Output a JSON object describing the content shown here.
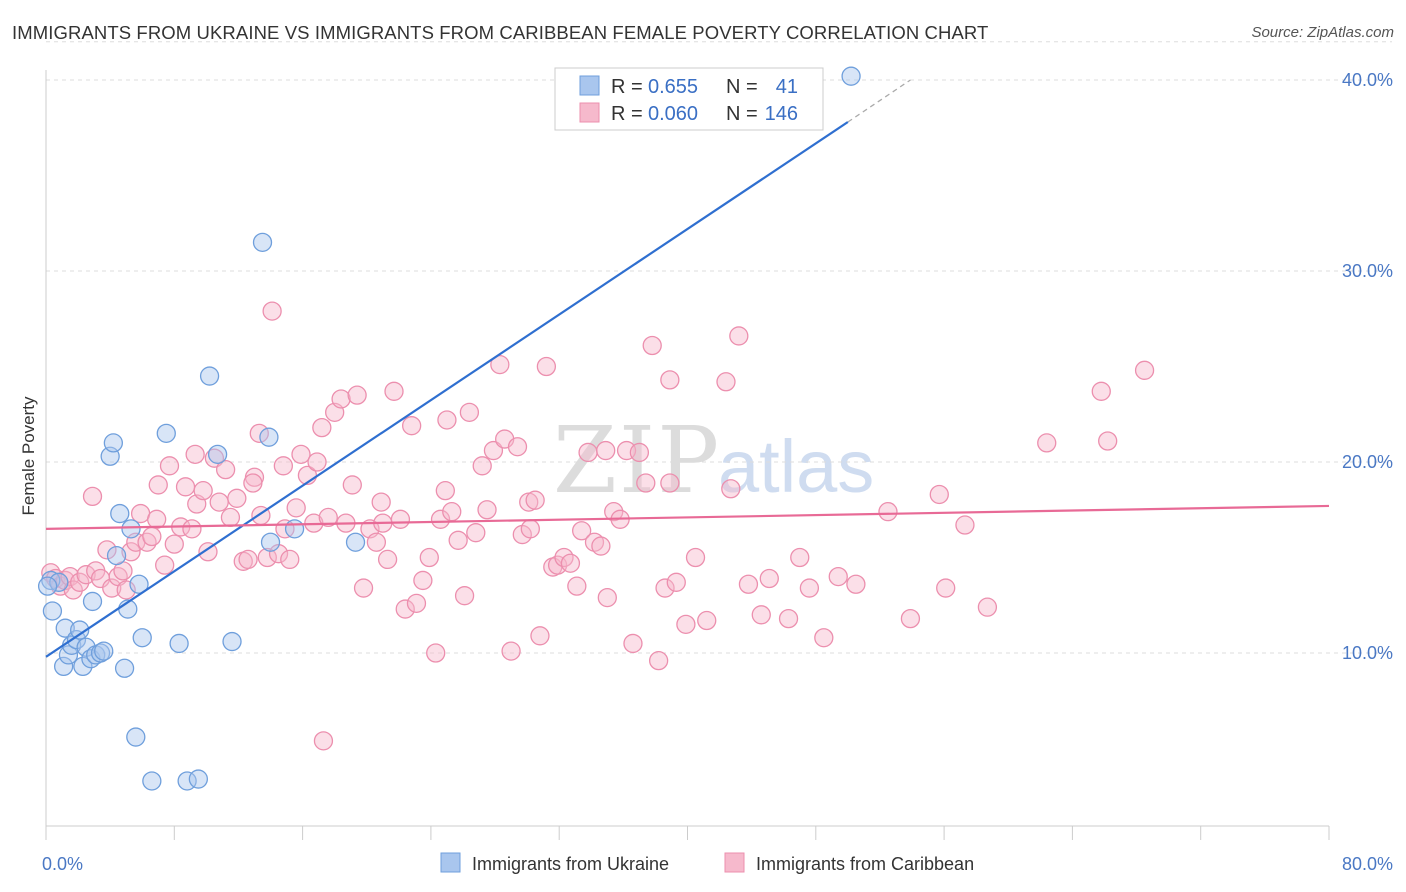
{
  "title": "IMMIGRANTS FROM UKRAINE VS IMMIGRANTS FROM CARIBBEAN FEMALE POVERTY CORRELATION CHART",
  "source": "Source: ZipAtlas.com",
  "watermark": {
    "part1": "ZIP",
    "part2": "atlas"
  },
  "colors": {
    "blue_fill": "#a9c6ee",
    "blue_stroke": "#6f9fdc",
    "blue_line": "#2f6fd0",
    "pink_fill": "#f6b9cc",
    "pink_stroke": "#ec8fae",
    "pink_line": "#e86a96",
    "grid": "#dddddd",
    "axis": "#cccccc",
    "tick_label": "#4a78c4"
  },
  "legend_box": {
    "rows": [
      {
        "r_label": "R =",
        "r_value": "0.655",
        "n_label": "N =",
        "n_value": "41",
        "series": "ukraine"
      },
      {
        "r_label": "R =",
        "r_value": "0.060",
        "n_label": "N =",
        "n_value": "146",
        "series": "caribbean"
      }
    ]
  },
  "chart_data": {
    "type": "scatter",
    "title": "IMMIGRANTS FROM UKRAINE VS IMMIGRANTS FROM CARIBBEAN FEMALE POVERTY CORRELATION CHART",
    "xlabel": "",
    "ylabel": "Female Poverty",
    "xlim": [
      0,
      80
    ],
    "ylim": [
      0,
      42
    ],
    "x_tick_labels": [
      {
        "value": 0,
        "label": "0.0%"
      },
      {
        "value": 80,
        "label": "80.0%"
      }
    ],
    "y_tick_labels": [
      {
        "value": 10,
        "label": "10.0%"
      },
      {
        "value": 20,
        "label": "20.0%"
      },
      {
        "value": 30,
        "label": "30.0%"
      },
      {
        "value": 40,
        "label": "40.0%"
      }
    ],
    "x_minor_ticks": [
      0,
      8,
      16,
      24,
      32,
      40,
      48,
      56,
      64,
      72,
      80
    ],
    "legend_position": "bottom-center",
    "series": [
      {
        "name": "Immigrants from Ukraine",
        "color": "blue",
        "trend": {
          "x": [
            0,
            50
          ],
          "y": [
            9.8,
            37.8
          ],
          "dashed_extension_to": [
            53.9,
            40.0
          ]
        },
        "points": [
          [
            0.3,
            13.8
          ],
          [
            0.4,
            12.2
          ],
          [
            0.8,
            13.7
          ],
          [
            1.1,
            9.3
          ],
          [
            1.2,
            11.3
          ],
          [
            1.4,
            9.9
          ],
          [
            1.6,
            10.4
          ],
          [
            1.9,
            10.7
          ],
          [
            2.1,
            11.2
          ],
          [
            2.3,
            9.3
          ],
          [
            2.5,
            10.3
          ],
          [
            2.8,
            9.7
          ],
          [
            2.9,
            12.7
          ],
          [
            3.1,
            9.9
          ],
          [
            3.4,
            10.0
          ],
          [
            3.6,
            10.1
          ],
          [
            4.0,
            20.3
          ],
          [
            4.2,
            21.0
          ],
          [
            4.4,
            15.1
          ],
          [
            4.6,
            17.3
          ],
          [
            4.9,
            9.2
          ],
          [
            5.1,
            12.3
          ],
          [
            5.3,
            16.5
          ],
          [
            5.6,
            5.6
          ],
          [
            5.8,
            13.6
          ],
          [
            6.0,
            10.8
          ],
          [
            6.6,
            3.3
          ],
          [
            7.5,
            21.5
          ],
          [
            8.3,
            10.5
          ],
          [
            8.8,
            3.3
          ],
          [
            9.5,
            3.4
          ],
          [
            10.2,
            24.5
          ],
          [
            10.7,
            20.4
          ],
          [
            11.6,
            10.6
          ],
          [
            13.5,
            31.5
          ],
          [
            13.9,
            21.3
          ],
          [
            14.0,
            15.8
          ],
          [
            15.5,
            16.5
          ],
          [
            19.3,
            15.8
          ],
          [
            50.2,
            40.2
          ],
          [
            0.1,
            13.5
          ]
        ]
      },
      {
        "name": "Immigrants from Caribbean",
        "color": "pink",
        "trend": {
          "x": [
            0,
            80
          ],
          "y": [
            16.5,
            17.7
          ]
        },
        "points": [
          [
            0.3,
            14.2
          ],
          [
            0.6,
            13.9
          ],
          [
            0.9,
            13.5
          ],
          [
            1.2,
            13.8
          ],
          [
            1.5,
            14.0
          ],
          [
            1.7,
            13.3
          ],
          [
            2.1,
            13.7
          ],
          [
            2.5,
            14.1
          ],
          [
            2.9,
            18.2
          ],
          [
            3.1,
            14.3
          ],
          [
            3.4,
            13.9
          ],
          [
            3.8,
            15.4
          ],
          [
            4.1,
            13.4
          ],
          [
            4.5,
            14.0
          ],
          [
            4.8,
            14.3
          ],
          [
            5.0,
            13.3
          ],
          [
            5.3,
            15.3
          ],
          [
            5.6,
            15.8
          ],
          [
            5.9,
            17.3
          ],
          [
            6.3,
            15.8
          ],
          [
            6.6,
            16.1
          ],
          [
            7.0,
            18.8
          ],
          [
            7.4,
            14.6
          ],
          [
            7.7,
            19.8
          ],
          [
            8.0,
            15.7
          ],
          [
            8.4,
            16.6
          ],
          [
            8.7,
            18.7
          ],
          [
            9.1,
            16.5
          ],
          [
            9.4,
            17.8
          ],
          [
            9.8,
            18.5
          ],
          [
            10.1,
            15.3
          ],
          [
            10.5,
            20.2
          ],
          [
            10.8,
            17.9
          ],
          [
            11.2,
            19.6
          ],
          [
            11.5,
            17.1
          ],
          [
            11.9,
            18.1
          ],
          [
            12.3,
            14.8
          ],
          [
            12.6,
            14.9
          ],
          [
            13.0,
            19.2
          ],
          [
            13.4,
            17.2
          ],
          [
            13.8,
            15.0
          ],
          [
            13.3,
            21.5
          ],
          [
            14.1,
            27.9
          ],
          [
            14.5,
            15.2
          ],
          [
            14.8,
            19.8
          ],
          [
            15.2,
            14.9
          ],
          [
            15.6,
            17.6
          ],
          [
            15.9,
            20.4
          ],
          [
            16.3,
            19.3
          ],
          [
            16.7,
            16.8
          ],
          [
            16.9,
            20.0
          ],
          [
            17.2,
            21.8
          ],
          [
            17.6,
            17.1
          ],
          [
            18.0,
            22.6
          ],
          [
            18.4,
            23.3
          ],
          [
            18.7,
            16.8
          ],
          [
            19.1,
            18.8
          ],
          [
            19.4,
            23.5
          ],
          [
            19.8,
            13.4
          ],
          [
            20.2,
            16.5
          ],
          [
            20.6,
            15.8
          ],
          [
            20.9,
            17.9
          ],
          [
            21.3,
            14.9
          ],
          [
            21.7,
            23.7
          ],
          [
            22.1,
            17.0
          ],
          [
            22.4,
            12.3
          ],
          [
            22.8,
            21.9
          ],
          [
            23.1,
            12.6
          ],
          [
            23.5,
            13.8
          ],
          [
            23.9,
            15.0
          ],
          [
            24.3,
            10.0
          ],
          [
            24.6,
            17.0
          ],
          [
            25.0,
            22.2
          ],
          [
            25.3,
            17.4
          ],
          [
            25.7,
            15.9
          ],
          [
            26.1,
            13.0
          ],
          [
            26.4,
            22.6
          ],
          [
            26.8,
            16.3
          ],
          [
            27.2,
            19.8
          ],
          [
            27.5,
            17.5
          ],
          [
            27.9,
            20.6
          ],
          [
            28.3,
            25.1
          ],
          [
            28.6,
            21.2
          ],
          [
            29.0,
            10.1
          ],
          [
            29.4,
            20.8
          ],
          [
            29.7,
            16.2
          ],
          [
            30.1,
            17.9
          ],
          [
            30.5,
            18.0
          ],
          [
            30.8,
            10.9
          ],
          [
            31.2,
            25.0
          ],
          [
            31.6,
            14.5
          ],
          [
            31.9,
            14.6
          ],
          [
            32.3,
            15.0
          ],
          [
            32.7,
            14.7
          ],
          [
            33.1,
            13.5
          ],
          [
            33.4,
            16.4
          ],
          [
            33.8,
            20.5
          ],
          [
            34.2,
            15.8
          ],
          [
            34.6,
            15.6
          ],
          [
            35.0,
            12.9
          ],
          [
            35.4,
            17.4
          ],
          [
            35.8,
            17.0
          ],
          [
            36.2,
            20.6
          ],
          [
            36.6,
            10.5
          ],
          [
            37.0,
            20.5
          ],
          [
            37.4,
            18.9
          ],
          [
            37.8,
            26.1
          ],
          [
            38.2,
            9.6
          ],
          [
            38.6,
            13.4
          ],
          [
            38.9,
            24.3
          ],
          [
            39.3,
            13.7
          ],
          [
            39.9,
            11.5
          ],
          [
            40.5,
            15.0
          ],
          [
            41.2,
            11.7
          ],
          [
            42.7,
            18.6
          ],
          [
            43.2,
            26.6
          ],
          [
            43.8,
            13.6
          ],
          [
            44.6,
            12.0
          ],
          [
            45.1,
            13.9
          ],
          [
            46.3,
            11.8
          ],
          [
            47.0,
            15.0
          ],
          [
            47.6,
            13.4
          ],
          [
            48.5,
            10.8
          ],
          [
            49.4,
            14.0
          ],
          [
            50.5,
            13.6
          ],
          [
            52.5,
            17.4
          ],
          [
            53.9,
            11.8
          ],
          [
            55.7,
            18.3
          ],
          [
            56.1,
            13.4
          ],
          [
            57.3,
            16.7
          ],
          [
            58.7,
            12.4
          ],
          [
            62.4,
            21.0
          ],
          [
            65.8,
            23.7
          ],
          [
            66.2,
            21.1
          ],
          [
            68.5,
            24.8
          ],
          [
            17.3,
            5.4
          ],
          [
            42.4,
            24.2
          ],
          [
            30.2,
            16.5
          ],
          [
            24.9,
            18.5
          ],
          [
            21.0,
            16.8
          ],
          [
            9.3,
            20.4
          ],
          [
            12.9,
            18.9
          ],
          [
            6.9,
            17.0
          ],
          [
            34.9,
            20.6
          ],
          [
            38.9,
            18.9
          ],
          [
            14.9,
            16.5
          ]
        ]
      }
    ]
  }
}
